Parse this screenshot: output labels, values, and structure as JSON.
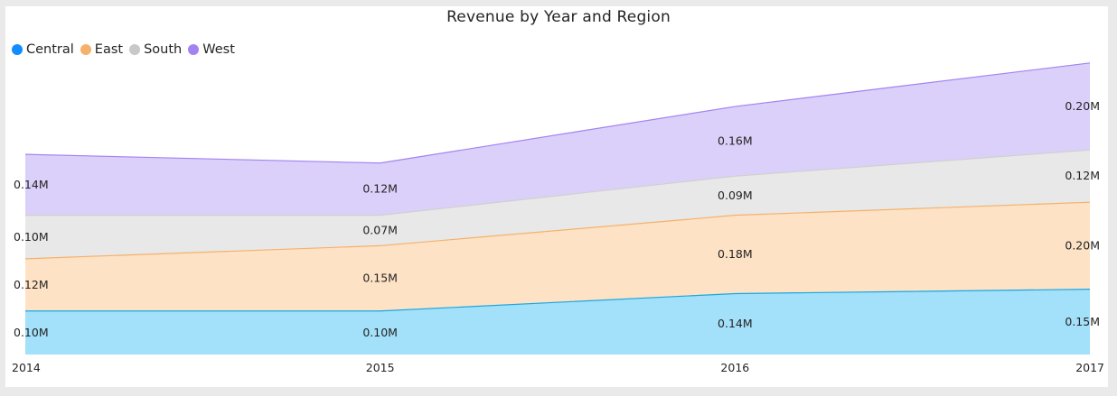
{
  "chart_data": {
    "type": "area",
    "stacked": true,
    "title": "Revenue by Year and Region",
    "xlabel": "",
    "ylabel": "",
    "legend_position": "top-left",
    "grid": false,
    "categories": [
      "2014",
      "2015",
      "2016",
      "2017"
    ],
    "ylim": [
      0,
      0.68
    ],
    "series": [
      {
        "name": "Central",
        "color": "#118DFF",
        "fill": "#A3E0FA",
        "line": "#1AA7E0",
        "values": [
          0.1,
          0.1,
          0.14,
          0.15
        ],
        "labels": [
          "0.10M",
          "0.10M",
          "0.14M",
          "0.15M"
        ]
      },
      {
        "name": "East",
        "color": "#F5B16B",
        "fill": "#FDE2C6",
        "line": "#F5B16B",
        "values": [
          0.12,
          0.15,
          0.18,
          0.2
        ],
        "labels": [
          "0.12M",
          "0.15M",
          "0.18M",
          "0.20M"
        ]
      },
      {
        "name": "South",
        "color": "#C8C8C8",
        "fill": "#E8E8E8",
        "line": "#D0D0D0",
        "values": [
          0.1,
          0.07,
          0.09,
          0.12
        ],
        "labels": [
          "0.10M",
          "0.07M",
          "0.09M",
          "0.12M"
        ]
      },
      {
        "name": "West",
        "color": "#A383F0",
        "fill": "#DBD0FA",
        "line": "#A383F0",
        "values": [
          0.14,
          0.12,
          0.16,
          0.2
        ],
        "labels": [
          "0.14M",
          "0.12M",
          "0.16M",
          "0.20M"
        ]
      }
    ]
  }
}
